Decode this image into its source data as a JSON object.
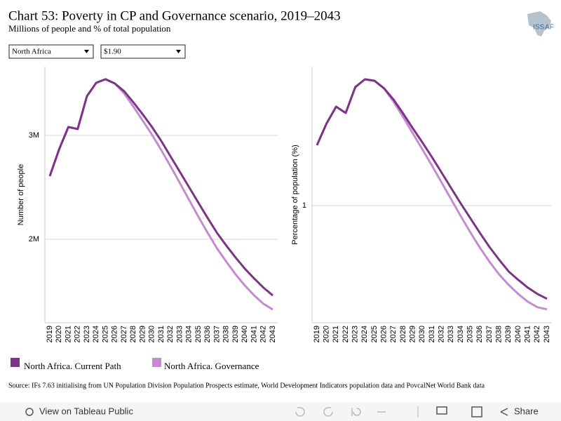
{
  "header": {
    "title": "Chart 53: Poverty in CP and Governance scenario, 2019–2043",
    "subtitle": "Millions of people and % of total population",
    "logo": [
      "ISS",
      "AF"
    ]
  },
  "filters": [
    "North Africa",
    "$1.90"
  ],
  "source": "Source: IFs 7.63 initialising from UN Population Division Population Prospects estimate, World Development Indicators population data and PovcalNet World Bank data",
  "toolbar": {
    "view": "View on Tableau Public",
    "share": "Share"
  },
  "chart_data": [
    {
      "type": "line",
      "y_label": "Number of people",
      "categories": [
        "2019",
        "2020",
        "2021",
        "2022",
        "2023",
        "2024",
        "2025",
        "2026",
        "2027",
        "2028",
        "2029",
        "2030",
        "2031",
        "2032",
        "2033",
        "2034",
        "2035",
        "2036",
        "2037",
        "2038",
        "2039",
        "2040",
        "2041",
        "2042",
        "2043"
      ],
      "ylim": [
        1196000,
        3662000
      ],
      "yticks": [
        {
          "value": 2000000,
          "label": "2M"
        },
        {
          "value": 3000000,
          "label": "3M"
        }
      ],
      "grid": true,
      "series": [
        {
          "name": "North Africa. Current Path",
          "color": "#7b3584",
          "values": [
            2608000,
            2865000,
            3081000,
            3061000,
            3378000,
            3507000,
            3541000,
            3500000,
            3426000,
            3318000,
            3203000,
            3081000,
            2946000,
            2797000,
            2649000,
            2500000,
            2351000,
            2203000,
            2061000,
            1939000,
            1824000,
            1716000,
            1622000,
            1534000,
            1459000
          ]
        },
        {
          "name": "North Africa. Governance",
          "color": "#c58bd0",
          "values": [
            2608000,
            2865000,
            3081000,
            3061000,
            3378000,
            3507000,
            3541000,
            3500000,
            3405000,
            3277000,
            3142000,
            3007000,
            2858000,
            2703000,
            2541000,
            2378000,
            2216000,
            2061000,
            1912000,
            1784000,
            1662000,
            1554000,
            1459000,
            1378000,
            1324000
          ]
        }
      ]
    },
    {
      "type": "line",
      "y_label": "Percentage of population (%)",
      "categories": [
        "2019",
        "2020",
        "2021",
        "2022",
        "2023",
        "2024",
        "2025",
        "2026",
        "2027",
        "2028",
        "2029",
        "2030",
        "2031",
        "2032",
        "2033",
        "2034",
        "2035",
        "2036",
        "2037",
        "2038",
        "2039",
        "2040",
        "2041",
        "2042",
        "2043"
      ],
      "ylim": [
        0.443,
        1.66
      ],
      "yticks": [
        1
      ],
      "grid": true,
      "series": [
        {
          "name": "North Africa. Current Path",
          "color": "#7b3584",
          "values": [
            1.287,
            1.39,
            1.47,
            1.44,
            1.563,
            1.6,
            1.593,
            1.557,
            1.503,
            1.437,
            1.367,
            1.3,
            1.23,
            1.157,
            1.083,
            1.01,
            0.94,
            0.87,
            0.803,
            0.743,
            0.687,
            0.647,
            0.61,
            0.58,
            0.557
          ]
        },
        {
          "name": "North Africa. Governance",
          "color": "#c58bd0",
          "values": [
            1.287,
            1.39,
            1.47,
            1.44,
            1.563,
            1.6,
            1.593,
            1.557,
            1.493,
            1.42,
            1.343,
            1.267,
            1.19,
            1.11,
            1.03,
            0.95,
            0.873,
            0.8,
            0.733,
            0.673,
            0.623,
            0.58,
            0.543,
            0.517,
            0.507
          ]
        }
      ]
    }
  ]
}
